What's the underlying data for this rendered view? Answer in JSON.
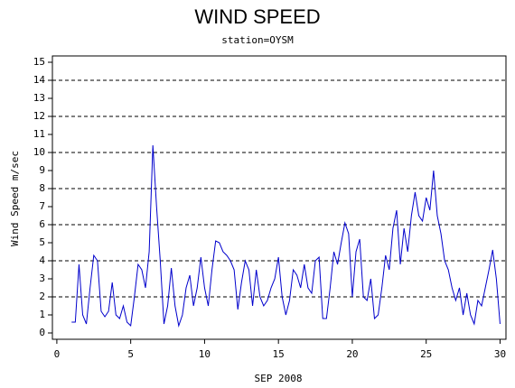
{
  "chart_data": {
    "type": "line",
    "title": "WIND SPEED",
    "subtitle": "station=OYSM",
    "xlabel": "SEP 2008",
    "ylabel": "Wind Speed m/sec",
    "xlim": [
      -0.3,
      30.4
    ],
    "ylim": [
      -0.35,
      15.35
    ],
    "xticks": [
      0,
      5,
      10,
      15,
      20,
      25,
      30
    ],
    "yticks": [
      0,
      1,
      2,
      3,
      4,
      5,
      6,
      7,
      8,
      9,
      10,
      11,
      12,
      13,
      14,
      15
    ],
    "grid": true,
    "x": [
      1.0,
      1.25,
      1.5,
      1.75,
      2.0,
      2.25,
      2.5,
      2.75,
      3.0,
      3.25,
      3.5,
      3.75,
      4.0,
      4.25,
      4.5,
      4.75,
      5.0,
      5.25,
      5.5,
      5.75,
      6.0,
      6.25,
      6.5,
      6.75,
      7.0,
      7.25,
      7.5,
      7.75,
      8.0,
      8.25,
      8.5,
      8.75,
      9.0,
      9.25,
      9.5,
      9.75,
      10.0,
      10.25,
      10.5,
      10.75,
      11.0,
      11.25,
      11.5,
      11.75,
      12.0,
      12.25,
      12.5,
      12.75,
      13.0,
      13.25,
      13.5,
      13.75,
      14.0,
      14.25,
      14.5,
      14.75,
      15.0,
      15.25,
      15.5,
      15.75,
      16.0,
      16.25,
      16.5,
      16.75,
      17.0,
      17.25,
      17.5,
      17.75,
      18.0,
      18.25,
      18.5,
      18.75,
      19.0,
      19.25,
      19.5,
      19.75,
      20.0,
      20.25,
      20.5,
      20.75,
      21.0,
      21.25,
      21.5,
      21.75,
      22.0,
      22.25,
      22.5,
      22.75,
      23.0,
      23.25,
      23.5,
      23.75,
      24.0,
      24.25,
      24.5,
      24.75,
      25.0,
      25.25,
      25.5,
      25.75,
      26.0,
      26.25,
      26.5,
      26.75,
      27.0,
      27.25,
      27.5,
      27.75,
      28.0,
      28.25,
      28.5,
      28.75,
      29.0,
      29.25,
      29.5,
      29.75,
      30.0
    ],
    "series": [
      {
        "name": "Wind Speed",
        "color": "#0000cc",
        "values": [
          0.6,
          0.6,
          3.8,
          1.0,
          0.5,
          2.5,
          4.3,
          4.0,
          1.2,
          0.9,
          1.2,
          2.8,
          1.0,
          0.8,
          1.5,
          0.6,
          0.4,
          2.0,
          3.8,
          3.5,
          2.5,
          4.5,
          10.4,
          7.0,
          4.0,
          0.5,
          1.5,
          3.6,
          1.5,
          0.4,
          1.0,
          2.5,
          3.2,
          1.5,
          2.5,
          4.2,
          2.5,
          1.5,
          3.5,
          5.1,
          5.0,
          4.5,
          4.3,
          4.0,
          3.5,
          1.3,
          2.8,
          4.0,
          3.5,
          1.5,
          3.5,
          2.0,
          1.5,
          1.8,
          2.5,
          3.0,
          4.2,
          2.0,
          1.0,
          1.8,
          3.5,
          3.2,
          2.5,
          3.8,
          2.5,
          2.2,
          4.0,
          4.2,
          0.8,
          0.8,
          2.5,
          4.5,
          3.8,
          5.0,
          6.1,
          5.5,
          2.0,
          4.5,
          5.2,
          2.0,
          1.8,
          3.0,
          0.8,
          1.0,
          2.5,
          4.3,
          3.5,
          5.8,
          6.8,
          3.8,
          5.8,
          4.5,
          6.5,
          7.8,
          6.5,
          6.2,
          7.5,
          6.8,
          9.0,
          6.5,
          5.5,
          4.0,
          3.5,
          2.5,
          1.8,
          2.5,
          1.0,
          2.2,
          1.0,
          0.5,
          1.8,
          1.5,
          2.5,
          3.5,
          4.6,
          3.0,
          0.5
        ]
      }
    ]
  }
}
